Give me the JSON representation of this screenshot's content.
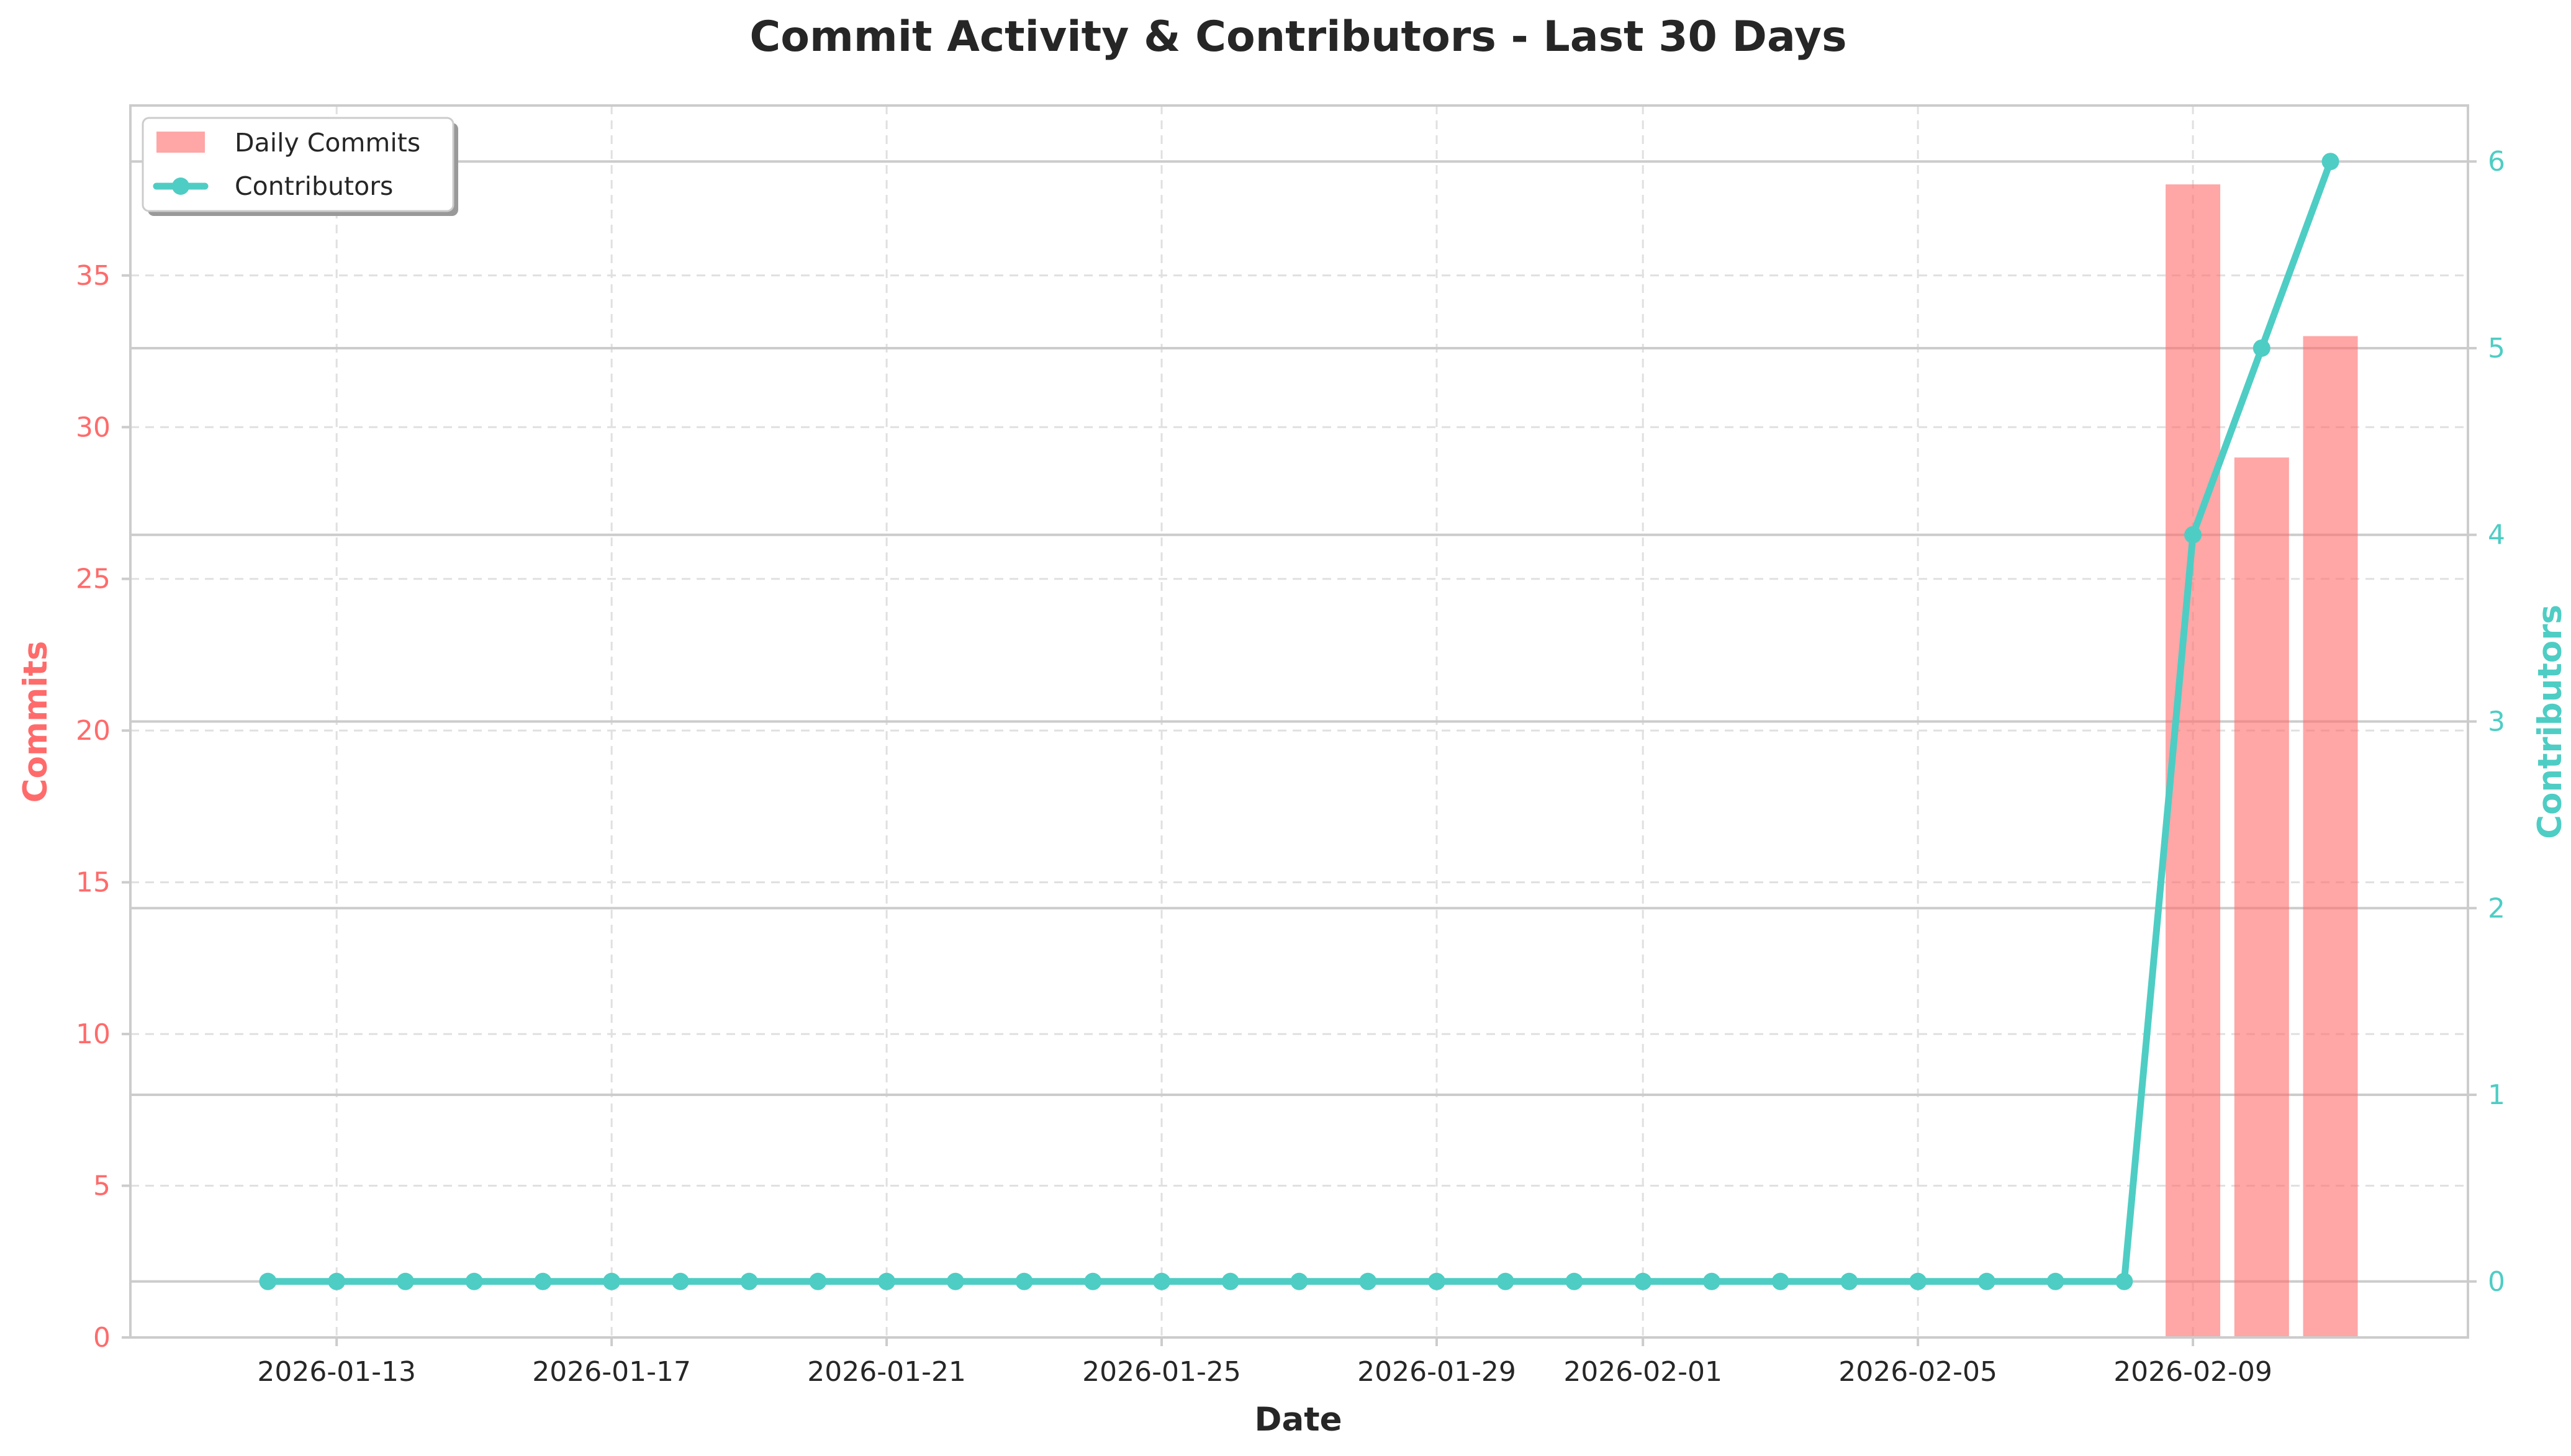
{
  "chart_data": {
    "type": "bar",
    "title": "Commit Activity & Contributors - Last 30 Days",
    "xlabel": "Date",
    "ylabel": "Commits",
    "y2label": "Contributors",
    "x": [
      "2026-01-12",
      "2026-01-13",
      "2026-01-14",
      "2026-01-15",
      "2026-01-16",
      "2026-01-17",
      "2026-01-18",
      "2026-01-19",
      "2026-01-20",
      "2026-01-21",
      "2026-01-22",
      "2026-01-23",
      "2026-01-24",
      "2026-01-25",
      "2026-01-26",
      "2026-01-27",
      "2026-01-28",
      "2026-01-29",
      "2026-01-30",
      "2026-01-31",
      "2026-02-01",
      "2026-02-02",
      "2026-02-03",
      "2026-02-04",
      "2026-02-05",
      "2026-02-06",
      "2026-02-07",
      "2026-02-08",
      "2026-02-09",
      "2026-02-10",
      "2026-02-11"
    ],
    "x_ticks": [
      "2026-01-13",
      "2026-01-17",
      "2026-01-21",
      "2026-01-25",
      "2026-01-29",
      "2026-02-01",
      "2026-02-05",
      "2026-02-09"
    ],
    "series": [
      {
        "name": "Daily Commits",
        "type": "bar",
        "axis": "left",
        "color": "#ff6b6b",
        "values": [
          0,
          0,
          0,
          0,
          0,
          0,
          0,
          0,
          0,
          0,
          0,
          0,
          0,
          0,
          0,
          0,
          0,
          0,
          0,
          0,
          0,
          0,
          0,
          0,
          0,
          0,
          0,
          0,
          38,
          29,
          33
        ]
      },
      {
        "name": "Contributors",
        "type": "line",
        "axis": "right",
        "color": "#4ecdc4",
        "values": [
          0,
          0,
          0,
          0,
          0,
          0,
          0,
          0,
          0,
          0,
          0,
          0,
          0,
          0,
          0,
          0,
          0,
          0,
          0,
          0,
          0,
          0,
          0,
          0,
          0,
          0,
          0,
          0,
          4,
          5,
          6
        ]
      }
    ],
    "ylim": [
      0,
      40.6
    ],
    "y_ticks": [
      0,
      5,
      10,
      15,
      20,
      25,
      30,
      35
    ],
    "y2lim": [
      -0.3,
      6.3
    ],
    "y2_ticks": [
      0,
      1,
      2,
      3,
      4,
      5,
      6
    ],
    "xlim": [
      "2026-01-10",
      "2026-02-13"
    ],
    "grid": true,
    "legend_position": "top-left",
    "colors": {
      "left_axis": "#ff6b6b",
      "right_axis": "#4ecdc4",
      "text": "#262626",
      "grid": "#e0e0e0",
      "spine": "#cccccc"
    }
  }
}
